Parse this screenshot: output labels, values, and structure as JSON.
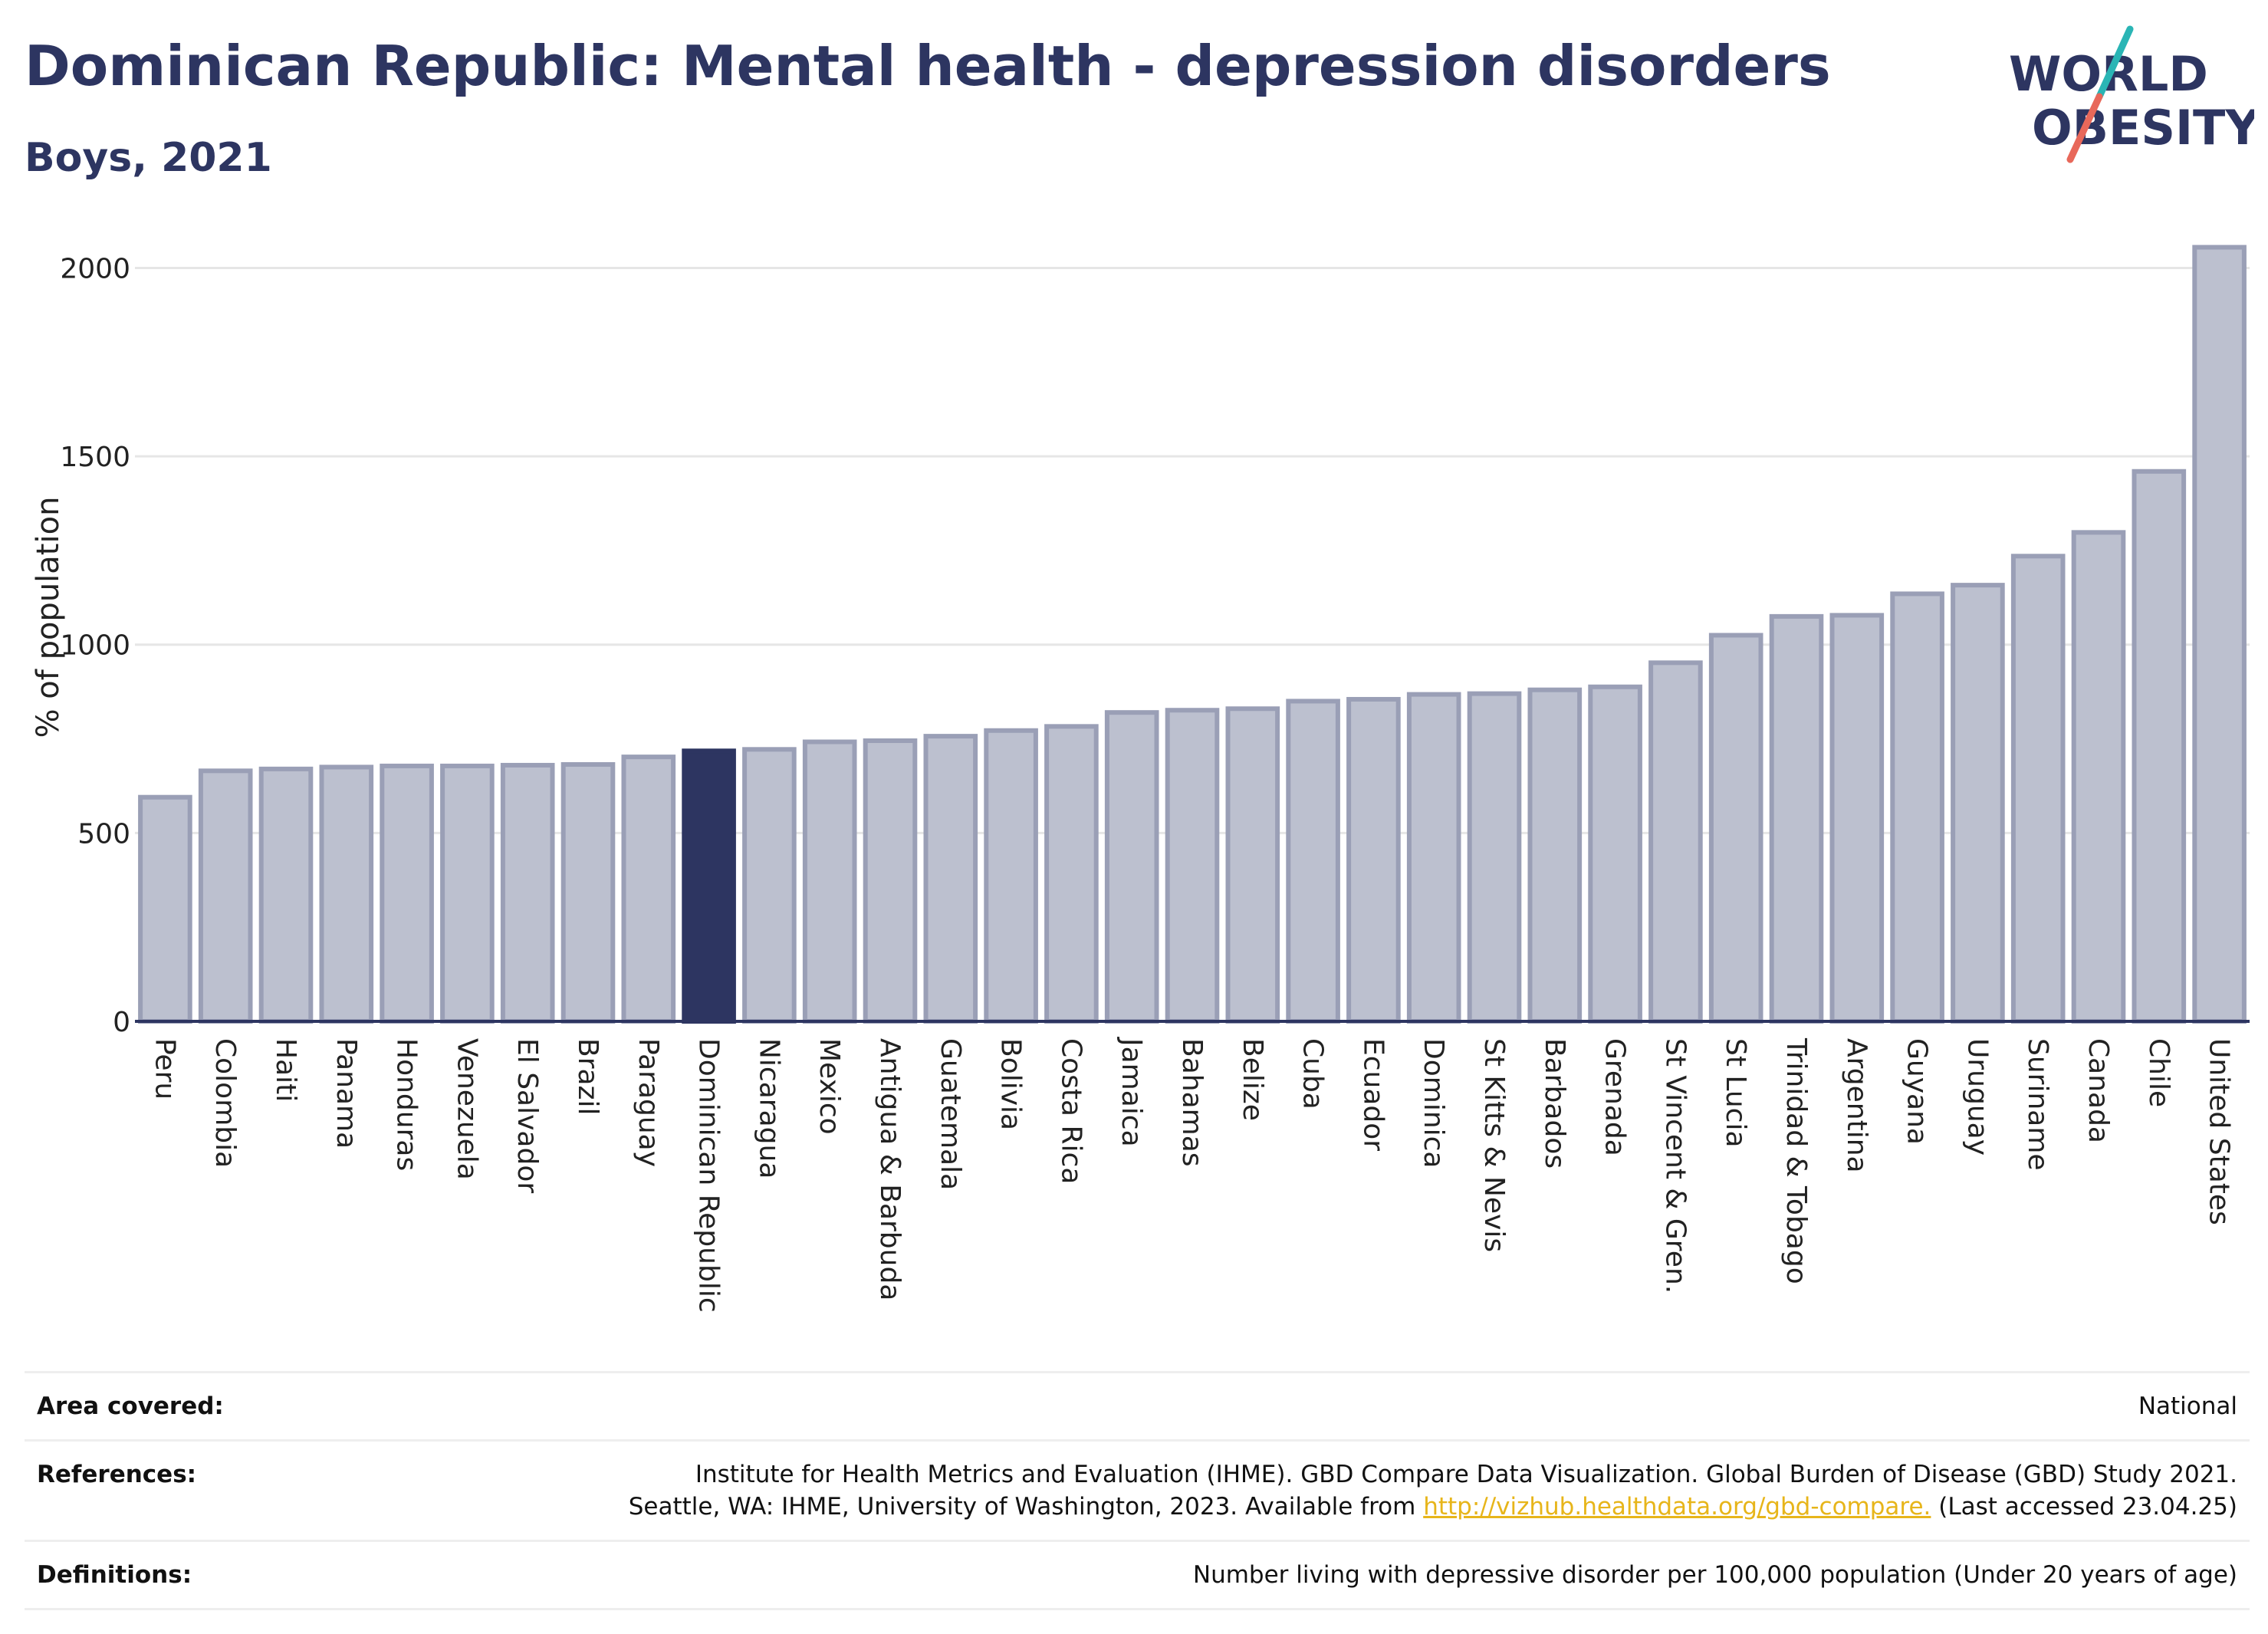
{
  "header": {
    "title": "Dominican Republic: Mental health - depression disorders",
    "subtitle": "Boys, 2021"
  },
  "logo": {
    "text_line1": "WORLD",
    "text_line2": "OBESITY",
    "colors": {
      "text": "#2d3561",
      "slash_top": "#2ab5b5",
      "slash_bottom": "#e8685a"
    }
  },
  "chart_data": {
    "type": "bar",
    "title": "Dominican Republic: Mental health - depression disorders",
    "subtitle": "Boys, 2021",
    "xlabel": "",
    "ylabel": "% of population",
    "ylim": [
      0,
      2060
    ],
    "yticks": [
      0,
      500,
      1000,
      1500,
      2000
    ],
    "grid": true,
    "highlight": "Dominican Republic",
    "colors": {
      "bar": "#bcc0cf",
      "bar_border": "#9a9fb6",
      "highlight": "#2d3561",
      "grid": "#e6e6e6",
      "axis": "#2d3561"
    },
    "categories": [
      "Peru",
      "Colombia",
      "Haiti",
      "Panama",
      "Honduras",
      "Venezuela",
      "El Salvador",
      "Brazil",
      "Paraguay",
      "Dominican Republic",
      "Nicaragua",
      "Mexico",
      "Antigua & Barbuda",
      "Guatemala",
      "Bolivia",
      "Costa Rica",
      "Jamaica",
      "Bahamas",
      "Belize",
      "Cuba",
      "Ecuador",
      "Dominica",
      "St Kitts & Nevis",
      "Barbados",
      "Grenada",
      "St Vincent & Gren.",
      "St Lucia",
      "Trinidad & Tobago",
      "Argentina",
      "Guyana",
      "Uruguay",
      "Suriname",
      "Canada",
      "Chile",
      "United States"
    ],
    "values": [
      595,
      665,
      670,
      675,
      678,
      678,
      680,
      682,
      702,
      718,
      722,
      742,
      745,
      757,
      772,
      783,
      820,
      826,
      830,
      850,
      855,
      868,
      870,
      880,
      888,
      952,
      1025,
      1075,
      1078,
      1135,
      1158,
      1235,
      1298,
      1460,
      2055
    ]
  },
  "info": {
    "rows": [
      {
        "key": "Area covered:",
        "value": "National"
      },
      {
        "key": "References:",
        "line1": "Institute for Health Metrics and Evaluation (IHME). GBD Compare Data Visualization. Global Burden of Disease (GBD) Study 2021.",
        "line2_prefix": "Seattle, WA: IHME, University of Washington, 2023. Available from ",
        "link": "http://vizhub.healthdata.org/gbd-compare.",
        "line2_suffix": " (Last accessed 23.04.25)"
      },
      {
        "key": "Definitions:",
        "value": "Number living with depressive disorder per 100,000 population (Under 20 years of age)"
      }
    ]
  }
}
